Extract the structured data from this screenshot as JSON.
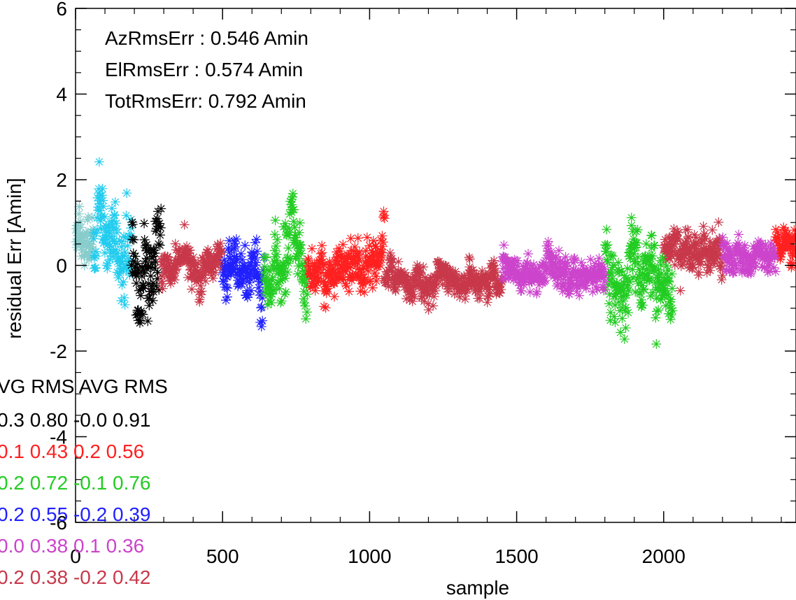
{
  "chart_data": {
    "type": "scatter",
    "title": "",
    "xlabel": "sample",
    "ylabel": "residual Err [Amin]",
    "xlim": [
      0,
      2450
    ],
    "ylim": [
      -6,
      6
    ],
    "x_ticks": [
      "0",
      "500",
      "1000",
      "1500",
      "2000"
    ],
    "y_ticks": [
      "-6",
      "-4",
      "-2",
      "0",
      "2",
      "4",
      "6"
    ],
    "annotations": [
      "AzRmsErr :  0.546 Amin",
      "ElRmsErr :  0.574 Amin",
      "TotRmsErr:  0.792 Amin"
    ],
    "stats_table": {
      "header": "VG RMS AVG RMS",
      "rows": [
        {
          "text": "0.3  0.80 -0.0  0.91",
          "color": "#000000"
        },
        {
          "text": "0.1  0.43  0.2  0.56",
          "color": "#ff2020"
        },
        {
          "text": "0.2  0.72 -0.1  0.76",
          "color": "#22cc22"
        },
        {
          "text": "0.2  0.55 -0.2  0.39",
          "color": "#2020ff"
        },
        {
          "text": "0.0  0.38  0.1  0.36",
          "color": "#cc44cc"
        },
        {
          "text": "0.2  0.38 -0.2  0.42",
          "color": "#c8384a"
        }
      ]
    },
    "series": [
      {
        "color": "#88cccc",
        "segments": [
          [
            0,
            60,
            0.7,
            0.55
          ]
        ]
      },
      {
        "color": "#22ccee",
        "segments": [
          [
            60,
            190,
            0.6,
            0.8
          ]
        ]
      },
      {
        "color": "#000000",
        "segments": [
          [
            190,
            290,
            0.3,
            0.9
          ]
        ]
      },
      {
        "color": "#c8384a",
        "segments": [
          [
            290,
            500,
            0.0,
            0.35
          ],
          [
            1050,
            1450,
            -0.4,
            0.3
          ],
          [
            2000,
            2200,
            0.3,
            0.35
          ]
        ]
      },
      {
        "color": "#2020ff",
        "segments": [
          [
            500,
            640,
            -0.2,
            0.5
          ]
        ]
      },
      {
        "color": "#22cc22",
        "segments": [
          [
            640,
            790,
            -0.1,
            0.75
          ],
          [
            1800,
            2030,
            -0.2,
            0.7
          ]
        ]
      },
      {
        "color": "#ff2020",
        "segments": [
          [
            790,
            1050,
            0.0,
            0.45
          ],
          [
            2380,
            2450,
            0.6,
            0.3
          ]
        ]
      },
      {
        "color": "#cc44cc",
        "segments": [
          [
            1450,
            1800,
            -0.2,
            0.35
          ],
          [
            2200,
            2380,
            0.2,
            0.3
          ]
        ]
      }
    ]
  }
}
